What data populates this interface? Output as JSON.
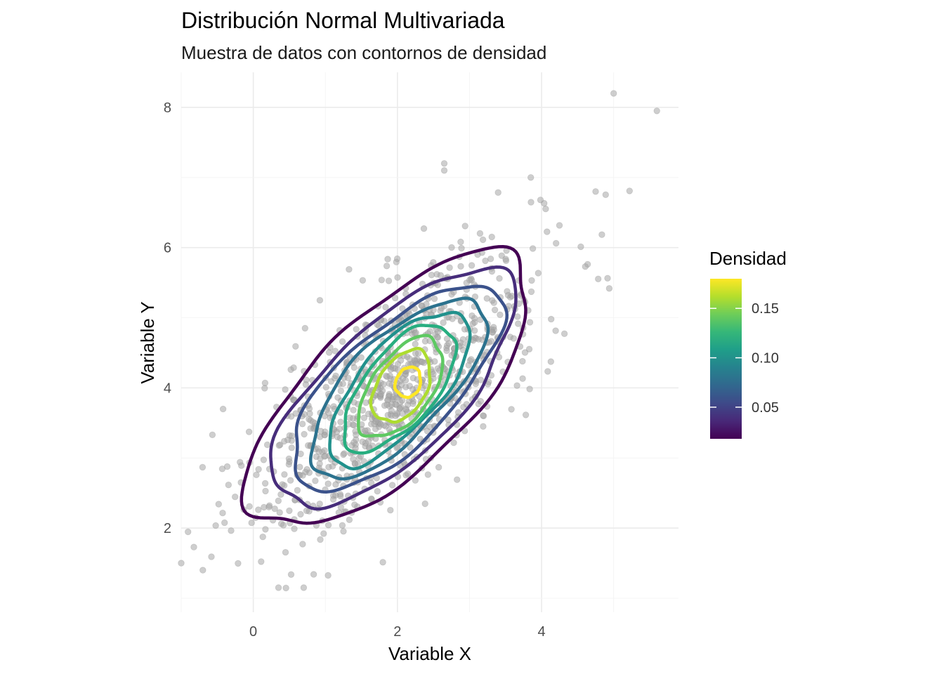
{
  "chart_data": {
    "type": "scatter",
    "title": "Distribución Normal Multivariada",
    "subtitle": "Muestra de datos con contornos de densidad",
    "xlabel": "Variable X",
    "ylabel": "Variable Y",
    "xlim": [
      -1.0,
      5.9
    ],
    "ylim": [
      0.8,
      8.5
    ],
    "x_ticks": [
      0,
      2,
      4
    ],
    "y_ticks": [
      2,
      4,
      6,
      8
    ],
    "grid": true,
    "legend": {
      "title": "Densidad",
      "position": "right",
      "type": "colorbar",
      "range": [
        0.018,
        0.18
      ],
      "ticks": [
        0.05,
        0.1,
        0.15
      ],
      "tick_labels": [
        "0.05",
        "0.10",
        "0.15"
      ],
      "colors": [
        "#440154",
        "#482878",
        "#3e4a89",
        "#31688e",
        "#26828e",
        "#1f9e89",
        "#35b779",
        "#6dcd59",
        "#b4de2c",
        "#fde725"
      ]
    },
    "points": {
      "count": 1000,
      "color": "#a6a6a6",
      "mean": [
        2.0,
        4.0
      ],
      "sd": [
        1.0,
        1.0
      ],
      "correlation": 0.7,
      "outliers": [
        [
          5.0,
          8.2
        ],
        [
          5.6,
          7.95
        ],
        [
          2.65,
          7.2
        ],
        [
          2.65,
          7.1
        ],
        [
          3.85,
          7.0
        ],
        [
          4.75,
          6.8
        ],
        [
          -1.0,
          1.5
        ],
        [
          -0.7,
          1.4
        ],
        [
          0.35,
          1.15
        ],
        [
          0.7,
          1.15
        ]
      ]
    },
    "contours": [
      {
        "level": 0.02,
        "color": "#440154",
        "cx": 1.9,
        "cy": 3.95,
        "a": 2.55,
        "b": 1.08,
        "angle": 45
      },
      {
        "level": 0.04,
        "color": "#472d7b",
        "cx": 1.95,
        "cy": 3.98,
        "a": 2.2,
        "b": 0.92,
        "angle": 45
      },
      {
        "level": 0.06,
        "color": "#3b528b",
        "cx": 1.98,
        "cy": 4.0,
        "a": 1.9,
        "b": 0.8,
        "angle": 45
      },
      {
        "level": 0.08,
        "color": "#2c728e",
        "cx": 2.0,
        "cy": 4.0,
        "a": 1.62,
        "b": 0.68,
        "angle": 47
      },
      {
        "level": 0.1,
        "color": "#21918c",
        "cx": 2.02,
        "cy": 4.0,
        "a": 1.35,
        "b": 0.57,
        "angle": 50
      },
      {
        "level": 0.12,
        "color": "#28ae80",
        "cx": 2.03,
        "cy": 4.0,
        "a": 1.08,
        "b": 0.5,
        "angle": 52
      },
      {
        "level": 0.14,
        "color": "#5ec962",
        "cx": 2.05,
        "cy": 4.0,
        "a": 0.82,
        "b": 0.42,
        "angle": 55
      },
      {
        "level": 0.16,
        "color": "#addc30",
        "cx": 2.06,
        "cy": 4.02,
        "a": 0.56,
        "b": 0.34,
        "angle": 60
      },
      {
        "level": 0.18,
        "color": "#fde725",
        "cx": 2.15,
        "cy": 4.08,
        "a": 0.22,
        "b": 0.17,
        "angle": 70
      }
    ]
  }
}
